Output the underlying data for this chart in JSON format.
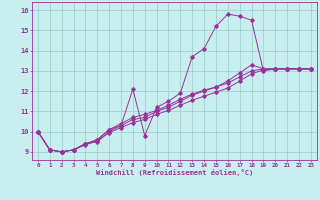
{
  "xlabel": "Windchill (Refroidissement éolien,°C)",
  "bg_color": "#c8eef0",
  "line_color": "#993399",
  "grid_color": "#99cccc",
  "xlim": [
    -0.5,
    23.5
  ],
  "ylim": [
    8.6,
    16.4
  ],
  "xticks": [
    0,
    1,
    2,
    3,
    4,
    5,
    6,
    7,
    8,
    9,
    10,
    11,
    12,
    13,
    14,
    15,
    16,
    17,
    18,
    19,
    20,
    21,
    22,
    23
  ],
  "yticks": [
    9,
    10,
    11,
    12,
    13,
    14,
    15,
    16
  ],
  "series1_x": [
    0,
    1,
    2,
    3,
    4,
    5,
    6,
    7,
    8,
    9,
    10,
    11,
    12,
    13,
    14,
    15,
    16,
    17,
    18,
    19,
    20,
    21,
    22,
    23
  ],
  "series1_y": [
    10.0,
    9.1,
    9.0,
    9.1,
    9.4,
    9.5,
    10.0,
    10.3,
    12.1,
    9.8,
    11.2,
    11.5,
    11.9,
    13.7,
    14.1,
    15.2,
    15.8,
    15.7,
    15.5,
    13.0,
    13.1,
    13.1,
    13.1,
    13.1
  ],
  "series2_x": [
    0,
    1,
    2,
    3,
    4,
    5,
    6,
    7,
    8,
    9,
    10,
    11,
    12,
    13,
    14,
    15,
    16,
    17,
    18,
    19,
    20,
    21,
    22,
    23
  ],
  "series2_y": [
    10.0,
    9.1,
    9.0,
    9.1,
    9.4,
    9.6,
    10.1,
    10.3,
    10.6,
    10.7,
    11.0,
    11.2,
    11.5,
    11.8,
    12.0,
    12.2,
    12.5,
    12.9,
    13.3,
    13.1,
    13.1,
    13.1,
    13.1,
    13.1
  ],
  "series3_x": [
    0,
    1,
    2,
    3,
    4,
    5,
    6,
    7,
    8,
    9,
    10,
    11,
    12,
    13,
    14,
    15,
    16,
    17,
    18,
    19,
    20,
    21,
    22,
    23
  ],
  "series3_y": [
    10.0,
    9.1,
    9.0,
    9.1,
    9.4,
    9.6,
    10.1,
    10.4,
    10.7,
    10.85,
    11.05,
    11.3,
    11.6,
    11.85,
    12.05,
    12.2,
    12.4,
    12.7,
    13.0,
    13.1,
    13.1,
    13.1,
    13.1,
    13.1
  ],
  "series4_x": [
    0,
    1,
    2,
    3,
    4,
    5,
    6,
    7,
    8,
    9,
    10,
    11,
    12,
    13,
    14,
    15,
    16,
    17,
    18,
    19,
    20,
    21,
    22,
    23
  ],
  "series4_y": [
    10.0,
    9.1,
    9.0,
    9.1,
    9.35,
    9.55,
    9.95,
    10.2,
    10.45,
    10.6,
    10.85,
    11.05,
    11.3,
    11.55,
    11.75,
    11.95,
    12.15,
    12.5,
    12.85,
    13.05,
    13.1,
    13.1,
    13.1,
    13.1
  ]
}
